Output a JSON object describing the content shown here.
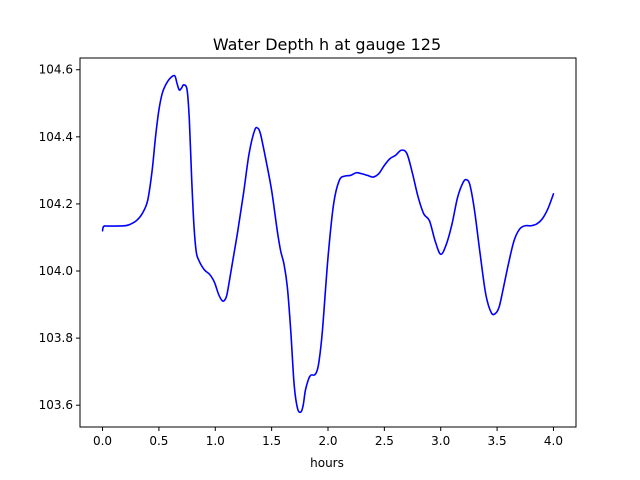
{
  "chart_data": {
    "type": "line",
    "title": "Water Depth h at gauge 125",
    "xlabel": "hours",
    "ylabel": "",
    "xlim": [
      -0.2,
      4.2
    ],
    "ylim": [
      103.535,
      104.635
    ],
    "xticks": [
      0.0,
      0.5,
      1.0,
      1.5,
      2.0,
      2.5,
      3.0,
      3.5,
      4.0
    ],
    "xtick_labels": [
      "0.0",
      "0.5",
      "1.0",
      "1.5",
      "2.0",
      "2.5",
      "3.0",
      "3.5",
      "4.0"
    ],
    "yticks": [
      103.6,
      103.8,
      104.0,
      104.2,
      104.4,
      104.6
    ],
    "ytick_labels": [
      "103.6",
      "103.8",
      "104.0",
      "104.2",
      "104.4",
      "104.6"
    ],
    "grid": false,
    "series": [
      {
        "color": "#0000ff",
        "x": [
          0.0,
          0.01,
          0.05,
          0.1,
          0.2,
          0.25,
          0.3,
          0.35,
          0.4,
          0.44,
          0.47,
          0.5,
          0.53,
          0.56,
          0.6,
          0.64,
          0.66,
          0.68,
          0.7,
          0.72,
          0.75,
          0.77,
          0.79,
          0.81,
          0.83,
          0.85,
          0.9,
          0.95,
          0.98,
          1.0,
          1.03,
          1.06,
          1.08,
          1.1,
          1.12,
          1.15,
          1.2,
          1.25,
          1.3,
          1.35,
          1.38,
          1.4,
          1.42,
          1.45,
          1.5,
          1.55,
          1.58,
          1.61,
          1.64,
          1.67,
          1.7,
          1.73,
          1.76,
          1.78,
          1.8,
          1.83,
          1.85,
          1.88,
          1.9,
          1.92,
          1.95,
          2.0,
          2.05,
          2.1,
          2.15,
          2.2,
          2.25,
          2.3,
          2.35,
          2.4,
          2.45,
          2.5,
          2.55,
          2.6,
          2.65,
          2.7,
          2.75,
          2.8,
          2.85,
          2.9,
          2.95,
          3.0,
          3.05,
          3.1,
          3.15,
          3.2,
          3.23,
          3.26,
          3.3,
          3.35,
          3.4,
          3.45,
          3.49,
          3.52,
          3.55,
          3.6,
          3.65,
          3.7,
          3.75,
          3.8,
          3.85,
          3.9,
          3.95,
          4.0
        ],
        "y": [
          104.12,
          104.133,
          104.134,
          104.134,
          104.135,
          104.14,
          104.15,
          104.17,
          104.21,
          104.3,
          104.4,
          104.48,
          104.53,
          104.555,
          104.575,
          104.582,
          104.56,
          104.54,
          104.545,
          104.555,
          104.54,
          104.45,
          104.28,
          104.14,
          104.06,
          104.035,
          104.005,
          103.99,
          103.975,
          103.96,
          103.93,
          103.912,
          103.912,
          103.925,
          103.96,
          104.02,
          104.12,
          104.23,
          104.35,
          104.42,
          104.425,
          104.41,
          104.38,
          104.33,
          104.24,
          104.12,
          104.06,
          104.02,
          103.95,
          103.82,
          103.66,
          103.59,
          103.58,
          103.6,
          103.645,
          103.68,
          103.69,
          103.69,
          103.7,
          103.73,
          103.82,
          104.04,
          104.2,
          104.27,
          104.283,
          104.285,
          104.293,
          104.29,
          104.285,
          104.28,
          104.29,
          104.315,
          104.335,
          104.345,
          104.36,
          104.35,
          104.29,
          104.22,
          104.17,
          104.15,
          104.09,
          104.05,
          104.08,
          104.14,
          104.22,
          104.265,
          104.272,
          104.255,
          104.18,
          104.05,
          103.93,
          103.875,
          103.875,
          103.895,
          103.94,
          104.02,
          104.09,
          104.125,
          104.135,
          104.135,
          104.14,
          104.155,
          104.185,
          104.23
        ]
      }
    ]
  }
}
